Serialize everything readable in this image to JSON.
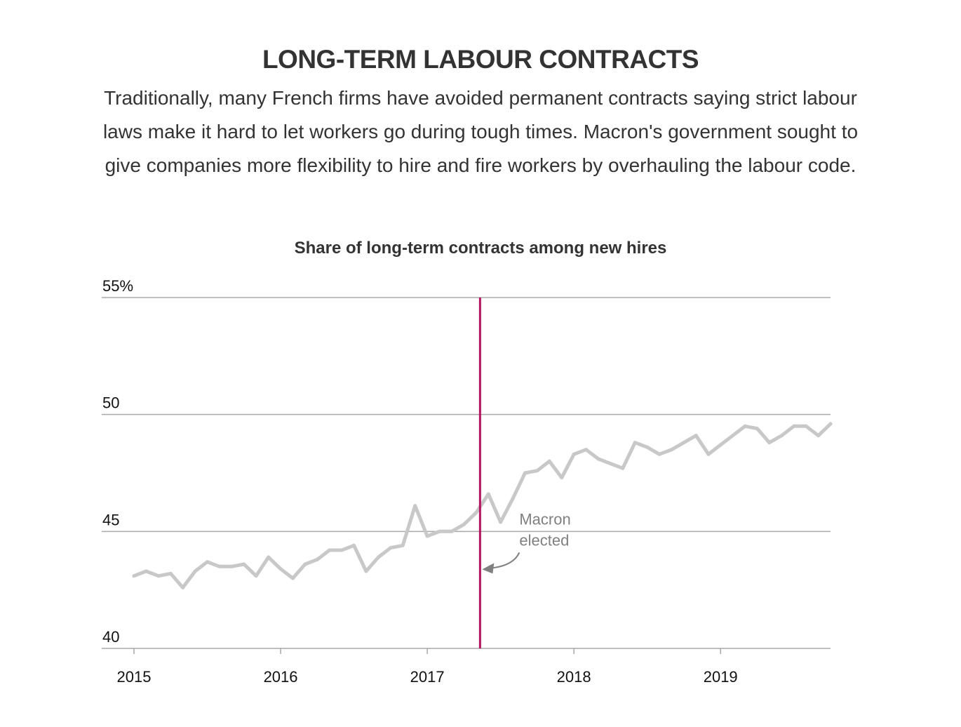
{
  "header": {
    "title": "LONG-TERM LABOUR CONTRACTS",
    "subtitle": "Traditionally, many French firms have avoided permanent contracts saying strict labour laws make it hard to let workers go during tough times. Macron's government sought to give companies more flexibility to hire and fire workers by overhauling the labour code."
  },
  "chart_data": {
    "type": "line",
    "title": "Share of long-term contracts among new hires",
    "y_tick_labels": [
      "40",
      "45",
      "50",
      "55%"
    ],
    "y_ticks": [
      40,
      45,
      50,
      55
    ],
    "ylim": [
      40,
      55
    ],
    "x_tick_labels": [
      "2015",
      "2016",
      "2017",
      "2018",
      "2019"
    ],
    "x_ticks": [
      2015,
      2016,
      2017,
      2018,
      2019
    ],
    "xlim": [
      2014.78,
      2019.75
    ],
    "grid": true,
    "series": [
      {
        "color": "#c8c8c8",
        "x": [
          2015.0,
          2015.083,
          2015.167,
          2015.25,
          2015.333,
          2015.417,
          2015.5,
          2015.583,
          2015.667,
          2015.75,
          2015.833,
          2015.917,
          2016.0,
          2016.083,
          2016.167,
          2016.25,
          2016.333,
          2016.417,
          2016.5,
          2016.583,
          2016.667,
          2016.75,
          2016.833,
          2016.917,
          2017.0,
          2017.083,
          2017.167,
          2017.25,
          2017.333,
          2017.417,
          2017.5,
          2017.583,
          2017.667,
          2017.75,
          2017.833,
          2017.917,
          2018.0,
          2018.083,
          2018.167,
          2018.25,
          2018.333,
          2018.417,
          2018.5,
          2018.583,
          2018.667,
          2018.75,
          2018.833,
          2018.917,
          2019.0,
          2019.083,
          2019.167,
          2019.25,
          2019.333,
          2019.417,
          2019.5,
          2019.583,
          2019.667,
          2019.75
        ],
        "values": [
          43.1,
          43.3,
          43.1,
          43.2,
          42.6,
          43.3,
          43.7,
          43.5,
          43.5,
          43.6,
          43.1,
          43.9,
          43.4,
          43.0,
          43.6,
          43.8,
          44.2,
          44.2,
          44.4,
          43.3,
          43.9,
          44.3,
          44.4,
          46.1,
          44.8,
          45.0,
          45.0,
          45.3,
          45.8,
          46.6,
          45.4,
          46.4,
          47.5,
          47.6,
          48.0,
          47.3,
          48.3,
          48.5,
          48.1,
          47.9,
          47.7,
          48.8,
          48.6,
          48.3,
          48.5,
          48.8,
          49.1,
          48.3,
          48.7,
          49.1,
          49.5,
          49.4,
          48.8,
          49.1,
          49.5,
          49.5,
          49.1,
          49.6
        ]
      }
    ],
    "reference_line": {
      "x": 2017.36,
      "color": "#b5145f"
    },
    "annotation": {
      "lines": [
        "Macron",
        "elected"
      ],
      "color": "#808080"
    }
  }
}
